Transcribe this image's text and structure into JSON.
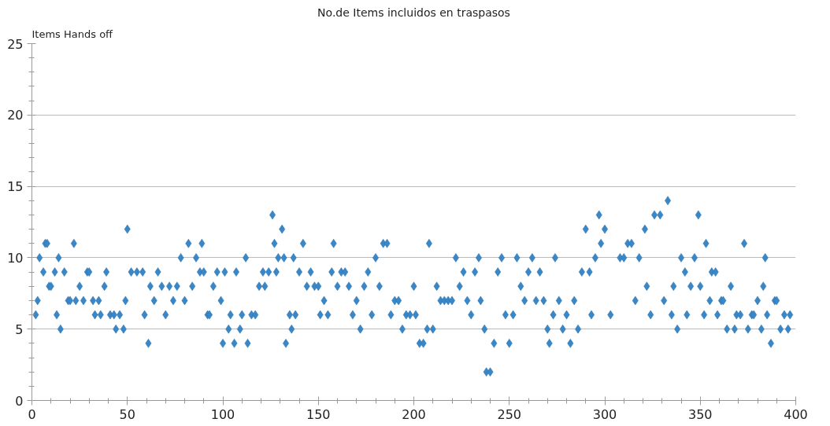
{
  "chart_data": {
    "type": "scatter",
    "title": "No.de Items incluidos en traspasos",
    "ylabel": "Items Hands off",
    "xlim": [
      0,
      400
    ],
    "xticks": [
      0,
      50,
      100,
      150,
      200,
      250,
      300,
      350,
      400
    ],
    "ylim": [
      0,
      25
    ],
    "yticks": [
      0,
      5,
      10,
      15,
      20,
      25
    ],
    "grid": "y",
    "marker": "diamond",
    "series": [
      {
        "color": "#3a87c8",
        "x": [
          2,
          3,
          4,
          6,
          7,
          8,
          9,
          10,
          12,
          13,
          14,
          15,
          17,
          19,
          20,
          22,
          23,
          25,
          27,
          29,
          30,
          32,
          33,
          35,
          36,
          38,
          39,
          41,
          43,
          44,
          46,
          48,
          49,
          50,
          52,
          55,
          58,
          59,
          61,
          62,
          64,
          66,
          68,
          70,
          72,
          74,
          76,
          78,
          80,
          82,
          84,
          86,
          88,
          89,
          90,
          92,
          93,
          95,
          97,
          99,
          100,
          101,
          103,
          104,
          106,
          107,
          109,
          110,
          112,
          113,
          115,
          117,
          119,
          121,
          122,
          124,
          126,
          127,
          128,
          129,
          131,
          132,
          133,
          135,
          136,
          137,
          138,
          140,
          142,
          144,
          146,
          148,
          150,
          151,
          153,
          155,
          157,
          158,
          160,
          162,
          164,
          166,
          168,
          170,
          172,
          174,
          176,
          178,
          180,
          182,
          184,
          186,
          188,
          190,
          192,
          194,
          196,
          198,
          200,
          201,
          203,
          205,
          207,
          208,
          210,
          212,
          214,
          216,
          218,
          220,
          222,
          224,
          226,
          228,
          230,
          232,
          234,
          235,
          237,
          238,
          240,
          242,
          244,
          246,
          248,
          250,
          252,
          254,
          256,
          258,
          260,
          262,
          264,
          266,
          268,
          270,
          271,
          273,
          274,
          276,
          278,
          280,
          282,
          284,
          286,
          288,
          290,
          292,
          293,
          295,
          297,
          298,
          300,
          303,
          308,
          310,
          312,
          314,
          316,
          318,
          321,
          322,
          324,
          326,
          329,
          331,
          333,
          335,
          336,
          338,
          340,
          342,
          343,
          345,
          347,
          349,
          350,
          352,
          353,
          355,
          356,
          358,
          359,
          361,
          362,
          364,
          366,
          368,
          369,
          371,
          373,
          375,
          377,
          378,
          380,
          382,
          383,
          384,
          385,
          387,
          389,
          390,
          392,
          394,
          396,
          397
        ],
        "values": [
          6,
          7,
          10,
          9,
          11,
          11,
          8,
          8,
          9,
          6,
          10,
          5,
          9,
          7,
          7,
          11,
          7,
          8,
          7,
          9,
          9,
          7,
          6,
          7,
          6,
          8,
          9,
          6,
          6,
          5,
          6,
          5,
          7,
          12,
          9,
          9,
          9,
          6,
          4,
          8,
          7,
          9,
          8,
          6,
          8,
          7,
          8,
          10,
          7,
          11,
          8,
          10,
          9,
          11,
          9,
          6,
          6,
          8,
          9,
          7,
          4,
          9,
          5,
          6,
          4,
          9,
          5,
          6,
          10,
          4,
          6,
          6,
          8,
          9,
          8,
          9,
          13,
          11,
          9,
          10,
          12,
          10,
          4,
          6,
          5,
          10,
          6,
          9,
          11,
          8,
          9,
          8,
          8,
          6,
          7,
          6,
          9,
          11,
          8,
          9,
          9,
          8,
          6,
          7,
          5,
          8,
          9,
          6,
          10,
          8,
          11,
          11,
          6,
          7,
          7,
          5,
          6,
          6,
          8,
          6,
          4,
          4,
          5,
          11,
          5,
          8,
          7,
          7,
          7,
          7,
          10,
          8,
          9,
          7,
          6,
          9,
          10,
          7,
          5,
          2,
          2,
          4,
          9,
          10,
          6,
          4,
          6,
          10,
          8,
          7,
          9,
          10,
          7,
          9,
          7,
          5,
          4,
          6,
          10,
          7,
          5,
          6,
          4,
          7,
          5,
          9,
          12,
          9,
          6,
          10,
          13,
          11,
          12,
          6,
          10,
          10,
          11,
          11,
          7,
          10,
          12,
          8,
          6,
          13,
          13,
          7,
          14,
          6,
          8,
          5,
          10,
          9,
          6,
          8,
          10,
          13,
          8,
          6,
          11,
          7,
          9,
          9,
          6,
          7,
          7,
          5,
          8,
          5,
          6,
          6,
          11,
          5,
          6,
          6,
          7,
          5,
          8,
          10,
          6,
          4,
          7,
          7,
          5,
          6,
          5,
          6
        ]
      }
    ]
  }
}
